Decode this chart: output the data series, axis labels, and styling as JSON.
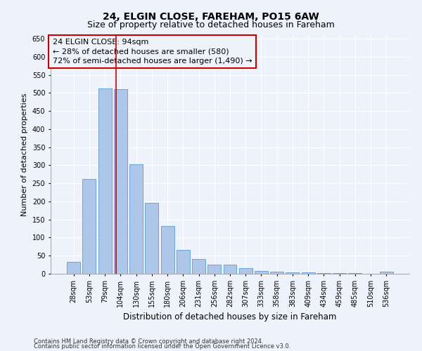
{
  "title1": "24, ELGIN CLOSE, FAREHAM, PO15 6AW",
  "title2": "Size of property relative to detached houses in Fareham",
  "xlabel": "Distribution of detached houses by size in Fareham",
  "ylabel": "Number of detached properties",
  "footnote1": "Contains HM Land Registry data © Crown copyright and database right 2024.",
  "footnote2": "Contains public sector information licensed under the Open Government Licence v3.0.",
  "categories": [
    "28sqm",
    "53sqm",
    "79sqm",
    "104sqm",
    "130sqm",
    "155sqm",
    "180sqm",
    "206sqm",
    "231sqm",
    "256sqm",
    "282sqm",
    "307sqm",
    "333sqm",
    "358sqm",
    "383sqm",
    "409sqm",
    "434sqm",
    "459sqm",
    "485sqm",
    "510sqm",
    "536sqm"
  ],
  "values": [
    33,
    263,
    513,
    510,
    303,
    197,
    132,
    66,
    40,
    25,
    25,
    16,
    8,
    5,
    3,
    3,
    1,
    1,
    1,
    0,
    5
  ],
  "bar_color": "#aec6e8",
  "bar_edge_color": "#5b9bd5",
  "vline_x": 2.72,
  "vline_color": "#cc0000",
  "annotation_line1": "24 ELGIN CLOSE: 94sqm",
  "annotation_line2": "← 28% of detached houses are smaller (580)",
  "annotation_line3": "72% of semi-detached houses are larger (1,490) →",
  "annotation_box_color": "#cc0000",
  "ylim": [
    0,
    660
  ],
  "yticks": [
    0,
    50,
    100,
    150,
    200,
    250,
    300,
    350,
    400,
    450,
    500,
    550,
    600,
    650
  ],
  "background_color": "#eef2fb",
  "grid_color": "#ffffff",
  "title1_fontsize": 10,
  "title2_fontsize": 9,
  "xlabel_fontsize": 8.5,
  "ylabel_fontsize": 8,
  "tick_fontsize": 7,
  "annotation_fontsize": 8,
  "footnote_fontsize": 6
}
